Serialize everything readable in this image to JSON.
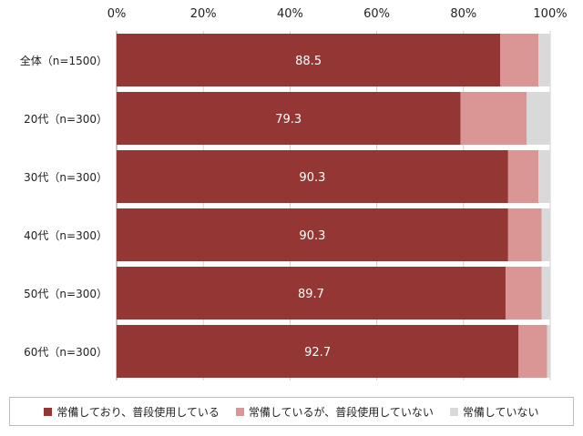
{
  "chart_data": {
    "type": "bar",
    "orientation": "horizontal",
    "stacked": true,
    "title": "",
    "xlabel": "",
    "ylabel": "",
    "xlim": [
      0,
      100
    ],
    "x_ticks": [
      "0%",
      "20%",
      "40%",
      "60%",
      "80%",
      "100%"
    ],
    "x_tick_values": [
      0,
      20,
      40,
      60,
      80,
      100
    ],
    "categories": [
      "全体（n=1500）",
      "20代（n=300）",
      "30代（n=300）",
      "40代（n=300）",
      "50代（n=300）",
      "60代（n=300）"
    ],
    "series": [
      {
        "name": "常備しており、普段使用している",
        "color": "#943634",
        "values": [
          88.5,
          79.3,
          90.3,
          90.3,
          89.7,
          92.7
        ],
        "labels": [
          "88.5",
          "79.3",
          "90.3",
          "90.3",
          "89.7",
          "92.7"
        ]
      },
      {
        "name": "常備しているが、普段使用していない",
        "color": "#d99694",
        "values": [
          8.8,
          15.3,
          7.0,
          7.7,
          8.3,
          6.6
        ]
      },
      {
        "name": "常備していない",
        "color": "#d9d9d9",
        "values": [
          2.7,
          5.4,
          2.7,
          2.0,
          2.0,
          0.7
        ]
      }
    ],
    "grid": true,
    "legend_position": "bottom"
  }
}
